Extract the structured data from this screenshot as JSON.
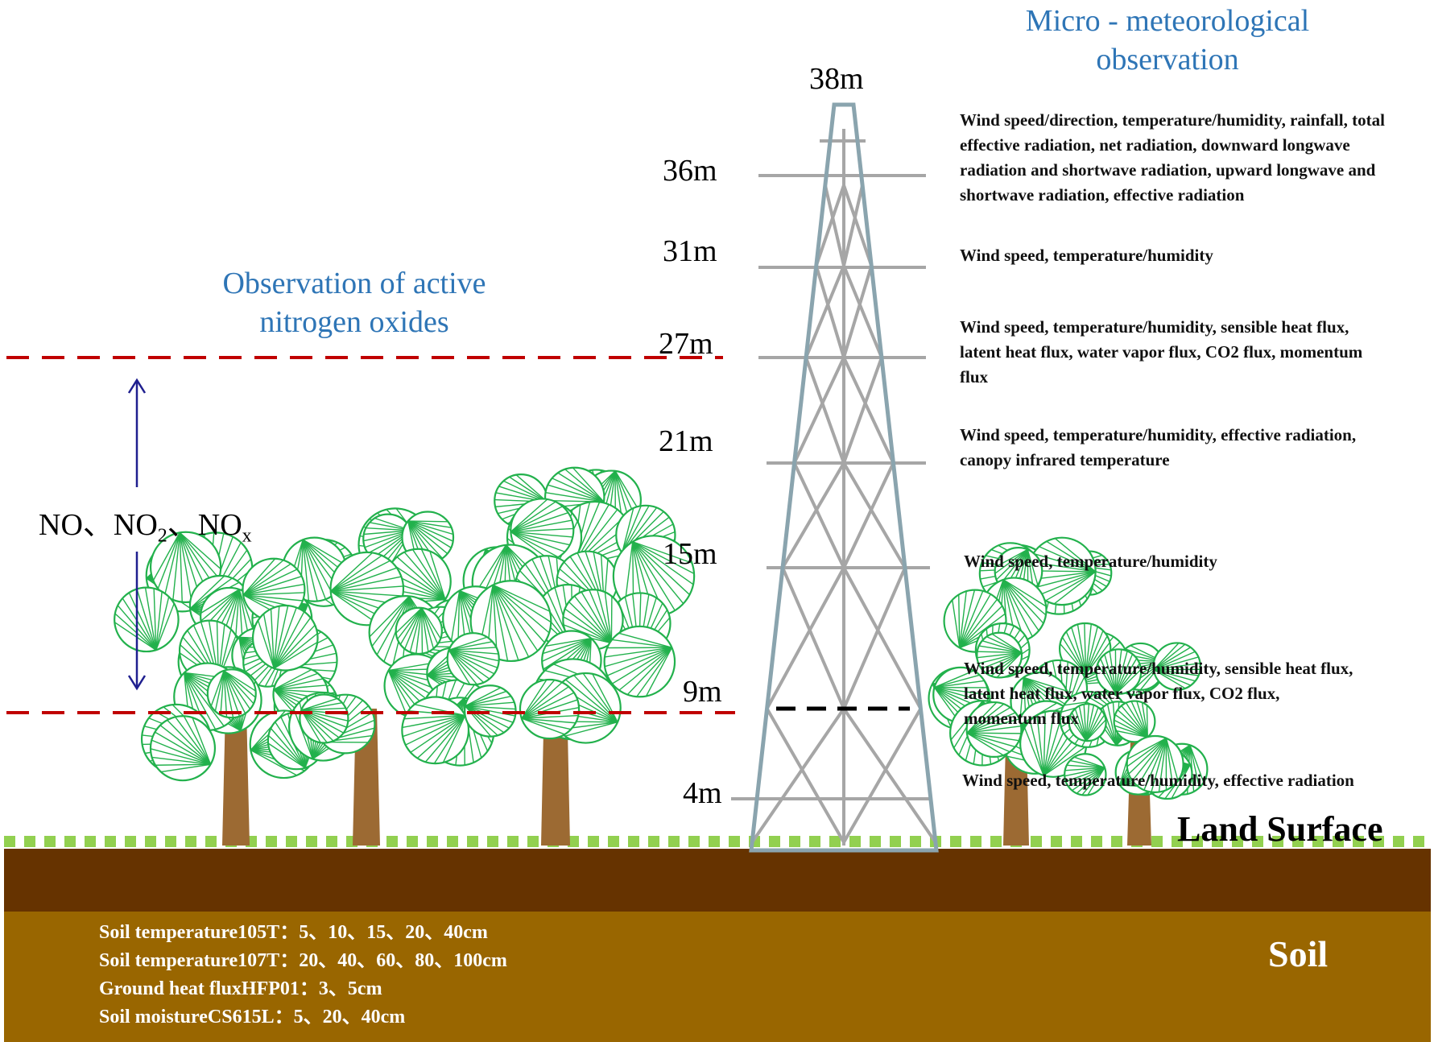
{
  "titles": {
    "micro_line1": "Micro - meteorological",
    "micro_line2": "observation",
    "nox_line1": "Observation of active",
    "nox_line2": "nitrogen oxides"
  },
  "tower": {
    "top_label": "38m",
    "levels": [
      {
        "height": "36m",
        "description": "Wind speed/direction, temperature/humidity, rainfall, total effective radiation, net radiation, downward longwave radiation and shortwave radiation, upward longwave and shortwave radiation, effective radiation"
      },
      {
        "height": "31m",
        "description": "Wind speed, temperature/humidity"
      },
      {
        "height": "27m",
        "description": "Wind speed, temperature/humidity, sensible heat flux, latent heat flux, water vapor flux, CO2 flux, momentum flux"
      },
      {
        "height": "21m",
        "description": "Wind speed, temperature/humidity, effective radiation, canopy infrared temperature"
      },
      {
        "height": "15m",
        "description": "Wind speed, temperature/humidity"
      },
      {
        "height": "9m",
        "description": "Wind speed, temperature/humidity, sensible heat flux, latent heat flux, water vapor flux, CO2 flux, momentum flux"
      },
      {
        "height": "4m",
        "description": "Wind speed, temperature/humidity, effective radiation"
      }
    ]
  },
  "nox": {
    "no": "NO、NO",
    "no2_sub": "2",
    "nox_mid": "、NO",
    "nox_sub": "x"
  },
  "ground": {
    "land_label": "Land Surface",
    "soil_label": "Soil",
    "soil_lines": [
      "Soil temperature105T：5、10、15、20、40cm",
      "Soil temperature107T：20、40、60、80、100cm",
      "Ground heat fluxHFP01：3、5cm",
      "Soil moistureCS615L：5、20、40cm"
    ]
  },
  "colors": {
    "title_blue": "#2e75b6",
    "dashed_red": "#c00000",
    "arrow_navy": "#1f1f8f",
    "tower_outline": "#8aa4ae",
    "tower_bars": "#a6a6a6",
    "leaf_green": "#22b14c",
    "trunk_brown": "#9c6a33",
    "grass_green": "#92d050",
    "topsoil": "#663300",
    "subsoil": "#996600"
  }
}
